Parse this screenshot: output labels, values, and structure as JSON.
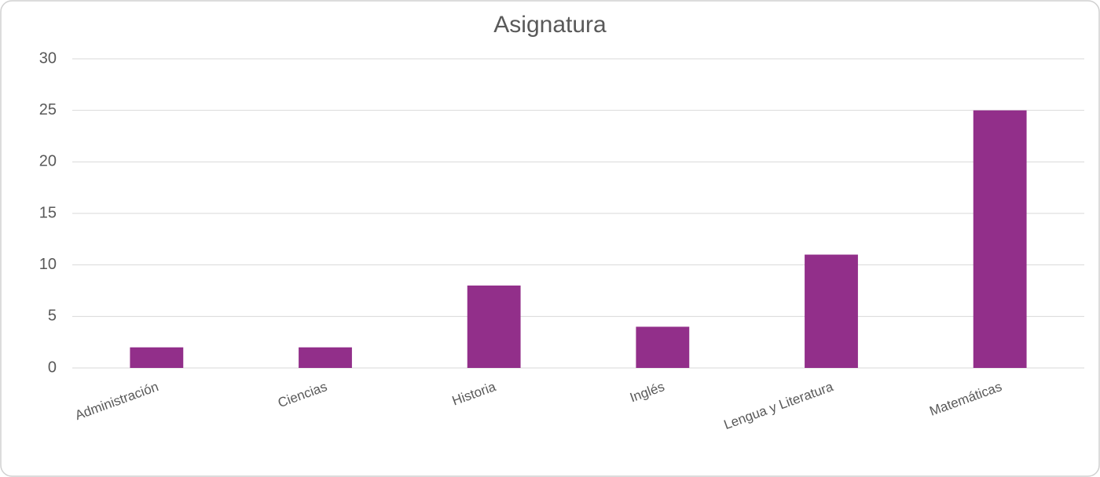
{
  "chart_data": {
    "type": "bar",
    "title": "Asignatura",
    "categories": [
      "Administración",
      "Ciencias",
      "Historia",
      "Inglés",
      "Lengua y Literatura",
      "Matemáticas"
    ],
    "values": [
      2,
      2,
      8,
      4,
      11,
      25
    ],
    "color": "#922f8a",
    "ylim": [
      0,
      30
    ],
    "yticks": [
      0,
      5,
      10,
      15,
      20,
      25,
      30
    ],
    "grid": true
  }
}
